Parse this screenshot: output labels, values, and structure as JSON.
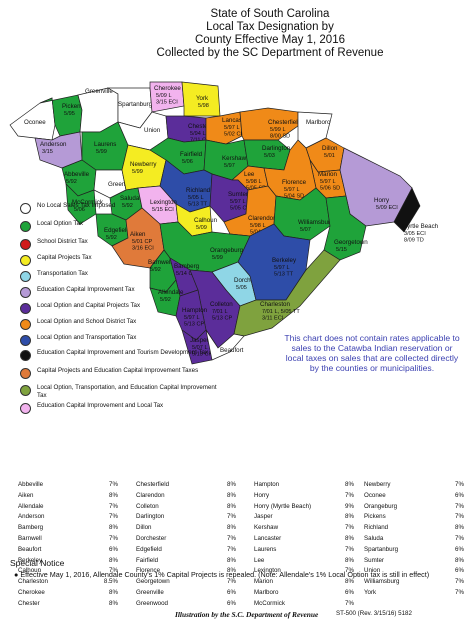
{
  "header": {
    "line1": "State of South Carolina",
    "line2": "Local Tax Designation by",
    "line3": "County Effective May 1, 2016",
    "line4": "Collected by the SC Department of Revenue"
  },
  "colors": {
    "none": "#ffffff",
    "local_option": "#1fa33a",
    "school_district": "#d01c1c",
    "capital_projects": "#f4ec22",
    "transportation": "#8fd6e6",
    "education_capital": "#b59ad6",
    "lo_capital": "#5b2d9a",
    "lo_school": "#f08a18",
    "lo_transport": "#2e4da8",
    "edu_tourism": "#111111",
    "capital_edu": "#e07a3a",
    "lo_transport_edu": "#7fa23e",
    "edu_local": "#f2b3ee"
  },
  "legend": [
    {
      "color_key": "none",
      "label": "No Local Sales Tax Imposed"
    },
    {
      "color_key": "local_option",
      "label": "Local Option Tax"
    },
    {
      "color_key": "school_district",
      "label": "School District Tax"
    },
    {
      "color_key": "capital_projects",
      "label": "Capital Projects Tax"
    },
    {
      "color_key": "transportation",
      "label": "Transportation Tax"
    },
    {
      "color_key": "education_capital",
      "label": "Education Capital Improvement Tax"
    },
    {
      "color_key": "lo_capital",
      "label": "Local Option and Capital Projects Tax"
    },
    {
      "color_key": "lo_school",
      "label": "Local Option and School District Tax"
    },
    {
      "color_key": "lo_transport",
      "label": "Local Option and Transportation Tax"
    },
    {
      "color_key": "edu_tourism",
      "label": "Education Capital Improvement and Tourism Development Tax"
    },
    {
      "color_key": "capital_edu",
      "label": "Capital Projects and Education Capital Improvement Taxes"
    },
    {
      "color_key": "lo_transport_edu",
      "label": "Local Option, Transportation, and Education Capital Improvement Tax"
    },
    {
      "color_key": "edu_local",
      "label": "Education Capital Improvement and Local Tax"
    }
  ],
  "counties": [
    {
      "name": "Oconee",
      "lines": []
    },
    {
      "name": "Pickens",
      "lines": [
        "5/95"
      ]
    },
    {
      "name": "Greenville",
      "lines": []
    },
    {
      "name": "Spartanburg",
      "lines": []
    },
    {
      "name": "Cherokee",
      "lines": [
        "5/09 L",
        "3/15 ECI"
      ]
    },
    {
      "name": "York",
      "lines": [
        "5/98"
      ]
    },
    {
      "name": "Anderson",
      "lines": [
        "3/15"
      ]
    },
    {
      "name": "Laurens",
      "lines": [
        "5/99"
      ]
    },
    {
      "name": "Union",
      "lines": []
    },
    {
      "name": "Chester",
      "lines": [
        "5/94 L",
        "7/11 CP"
      ]
    },
    {
      "name": "Lancaster",
      "lines": [
        "5/97 L",
        "5/02 CP"
      ]
    },
    {
      "name": "Chesterfield",
      "lines": [
        "5/99 L",
        "8/00 SD"
      ]
    },
    {
      "name": "Marlboro",
      "lines": []
    },
    {
      "name": "Abbeville",
      "lines": [
        "5/92"
      ]
    },
    {
      "name": "Greenwood",
      "lines": []
    },
    {
      "name": "Newberry",
      "lines": [
        "5/99"
      ]
    },
    {
      "name": "Fairfield",
      "lines": [
        "5/06"
      ]
    },
    {
      "name": "Kershaw",
      "lines": [
        "5/97"
      ]
    },
    {
      "name": "Darlington",
      "lines": [
        "5/03"
      ]
    },
    {
      "name": "Dillon",
      "lines": [
        "5/01"
      ]
    },
    {
      "name": "Lee",
      "lines": [
        "5/98 L",
        "5/05 SD"
      ]
    },
    {
      "name": "Marion",
      "lines": [
        "5/97 L",
        "5/06 SD"
      ]
    },
    {
      "name": "Horry",
      "lines": [
        "5/09 ECI"
      ]
    },
    {
      "name": "McCormick",
      "lines": [
        "5/06"
      ]
    },
    {
      "name": "Saluda",
      "lines": [
        "5/92"
      ]
    },
    {
      "name": "Edgefield",
      "lines": [
        "5/92"
      ]
    },
    {
      "name": "Richland",
      "lines": [
        "5/05 L",
        "5/13 TT"
      ]
    },
    {
      "name": "Lexington",
      "lines": [
        "5/15 ECI"
      ]
    },
    {
      "name": "Sumter",
      "lines": [
        "5/97 L",
        "5/05 CP"
      ]
    },
    {
      "name": "Florence",
      "lines": [
        "5/97 L",
        "5/04 SD"
      ]
    },
    {
      "name": "Aiken",
      "lines": [
        "5/01 CP",
        "3/16 ECI"
      ]
    },
    {
      "name": "Calhoun",
      "lines": [
        "5/09"
      ]
    },
    {
      "name": "Clarendon",
      "lines": [
        "5/98 L",
        "5/04 SD"
      ]
    },
    {
      "name": "Williamsburg",
      "lines": [
        "5/07"
      ]
    },
    {
      "name": "Georgetown",
      "lines": [
        "5/15"
      ]
    },
    {
      "name": "Orangeburg",
      "lines": [
        "5/99"
      ]
    },
    {
      "name": "Barnwell",
      "lines": [
        "5/92"
      ]
    },
    {
      "name": "Bamberg",
      "lines": [
        "5/14 CP"
      ]
    },
    {
      "name": "Allendale",
      "lines": [
        "5/92"
      ]
    },
    {
      "name": "Dorchester",
      "lines": [
        "5/05"
      ]
    },
    {
      "name": "Berkeley",
      "lines": [
        "5/97 L",
        "5/13 TT"
      ]
    },
    {
      "name": "Colleton",
      "lines": [
        "7/01 L",
        "5/13 CP"
      ]
    },
    {
      "name": "Hampton",
      "lines": [
        "5/97 L",
        "5/13 CP"
      ]
    },
    {
      "name": "Charleston",
      "lines": [
        "7/01 L, 5/05 TT",
        "3/11 ECI"
      ]
    },
    {
      "name": "Jasper",
      "lines": [
        "5/07 L",
        "5/13 CP"
      ]
    },
    {
      "name": "Beaufort",
      "lines": []
    },
    {
      "name": "Myrtle Beach",
      "lines": [
        "3/05 ECI",
        "8/09 TD"
      ]
    }
  ],
  "note": "This chart does not contain rates applicable to sales to the Catawba Indian reservation or local taxes on sales that are collected directly by the counties or municipalities.",
  "rates": [
    [
      [
        "Abbeville",
        "7%"
      ],
      [
        "Aiken",
        "8%"
      ],
      [
        "Allendale",
        "7%"
      ],
      [
        "Anderson",
        "7%"
      ],
      [
        "Bamberg",
        "8%"
      ],
      [
        "Barnwell",
        "7%"
      ],
      [
        "Beaufort",
        "6%"
      ],
      [
        "Berkeley",
        "8%"
      ],
      [
        "Calhoun",
        "7%"
      ],
      [
        "Charleston",
        "8.5%"
      ],
      [
        "Cherokee",
        "8%"
      ],
      [
        "Chester",
        "8%"
      ]
    ],
    [
      [
        "Chesterfield",
        "8%"
      ],
      [
        "Clarendon",
        "8%"
      ],
      [
        "Colleton",
        "8%"
      ],
      [
        "Darlington",
        "7%"
      ],
      [
        "Dillon",
        "8%"
      ],
      [
        "Dorchester",
        "7%"
      ],
      [
        "Edgefield",
        "7%"
      ],
      [
        "Fairfield",
        "8%"
      ],
      [
        "Florence",
        "8%"
      ],
      [
        "Georgetown",
        "7%"
      ],
      [
        "Greenville",
        "6%"
      ],
      [
        "Greenwood",
        "6%"
      ]
    ],
    [
      [
        "Hampton",
        "8%"
      ],
      [
        "Horry",
        "7%"
      ],
      [
        "Horry (Myrtle Beach)",
        "9%"
      ],
      [
        "Jasper",
        "8%"
      ],
      [
        "Kershaw",
        "7%"
      ],
      [
        "Lancaster",
        "8%"
      ],
      [
        "Laurens",
        "7%"
      ],
      [
        "Lee",
        "8%"
      ],
      [
        "Lexington",
        "7%"
      ],
      [
        "Marion",
        "8%"
      ],
      [
        "Marlboro",
        "6%"
      ],
      [
        "McCormick",
        "7%"
      ]
    ],
    [
      [
        "Newberry",
        "7%"
      ],
      [
        "Oconee",
        "6%"
      ],
      [
        "Orangeburg",
        "7%"
      ],
      [
        "Pickens",
        "7%"
      ],
      [
        "Richland",
        "8%"
      ],
      [
        "Saluda",
        "7%"
      ],
      [
        "Spartanburg",
        "6%"
      ],
      [
        "Sumter",
        "8%"
      ],
      [
        "Union",
        "6%"
      ],
      [
        "Williamsburg",
        "7%"
      ],
      [
        "York",
        "7%"
      ]
    ]
  ],
  "notice": {
    "title": "Special Notice",
    "text": "Effective May 1, 2016, Allendale County's 1% Capital Projects is repealed. (Note: Allendale's 1% Local Option tax is still in effect)"
  },
  "footer": {
    "center": "Illustration by the S.C. Department of Revenue",
    "right": "ST-500  (Rev. 3/15/16)  5182"
  }
}
